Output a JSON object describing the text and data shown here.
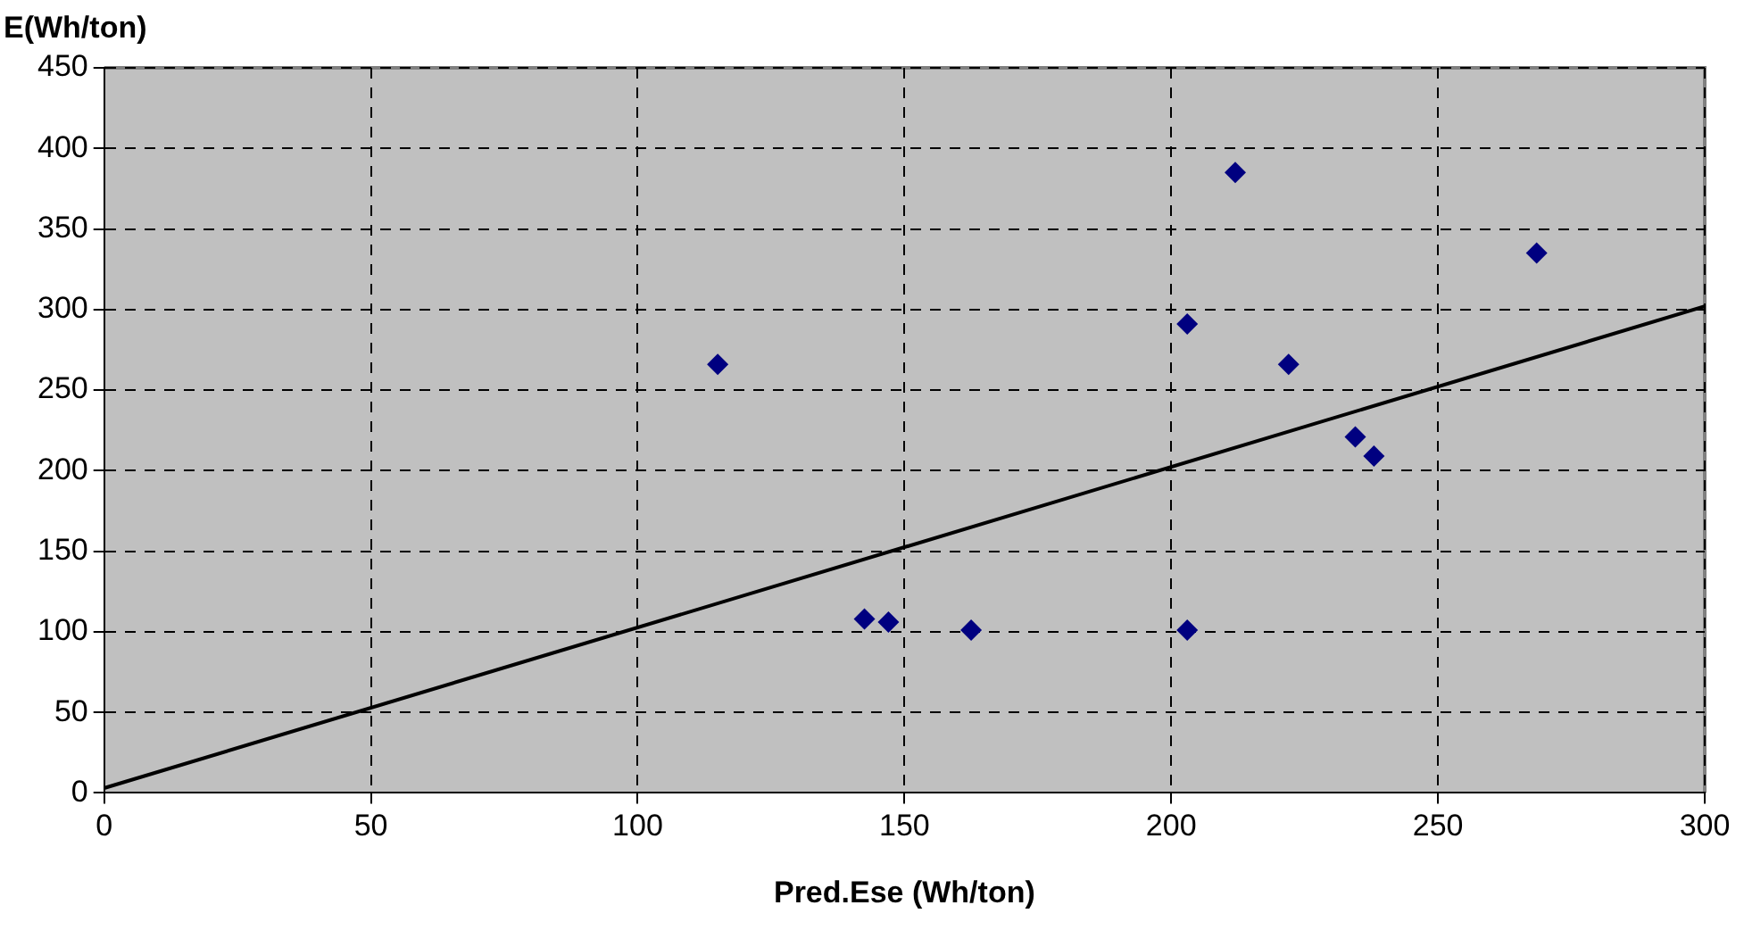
{
  "chart_data": {
    "type": "scatter",
    "xlabel": "Pred.Ese (Wh/ton)",
    "ylabel": "E(Wh/ton)",
    "xlim": [
      0,
      300
    ],
    "xticks": [
      0,
      50,
      100,
      150,
      200,
      250,
      300
    ],
    "ylim": [
      0,
      450
    ],
    "yticks": [
      0,
      50,
      100,
      150,
      200,
      250,
      300,
      350,
      400,
      450
    ],
    "grid": true,
    "marker": "diamond",
    "series": [
      {
        "color": "#000080",
        "x": [
          115,
          142.5,
          147,
          162.5,
          203,
          203,
          212,
          222,
          234.5,
          238,
          268.5
        ],
        "values": [
          266,
          108,
          106,
          101,
          291,
          101,
          385,
          266,
          221,
          209,
          335
        ]
      },
      {
        "type": "line",
        "color": "#000000",
        "x": [
          0,
          300
        ],
        "values": [
          3,
          302
        ],
        "line_style": "solid",
        "marker": "none"
      }
    ]
  }
}
